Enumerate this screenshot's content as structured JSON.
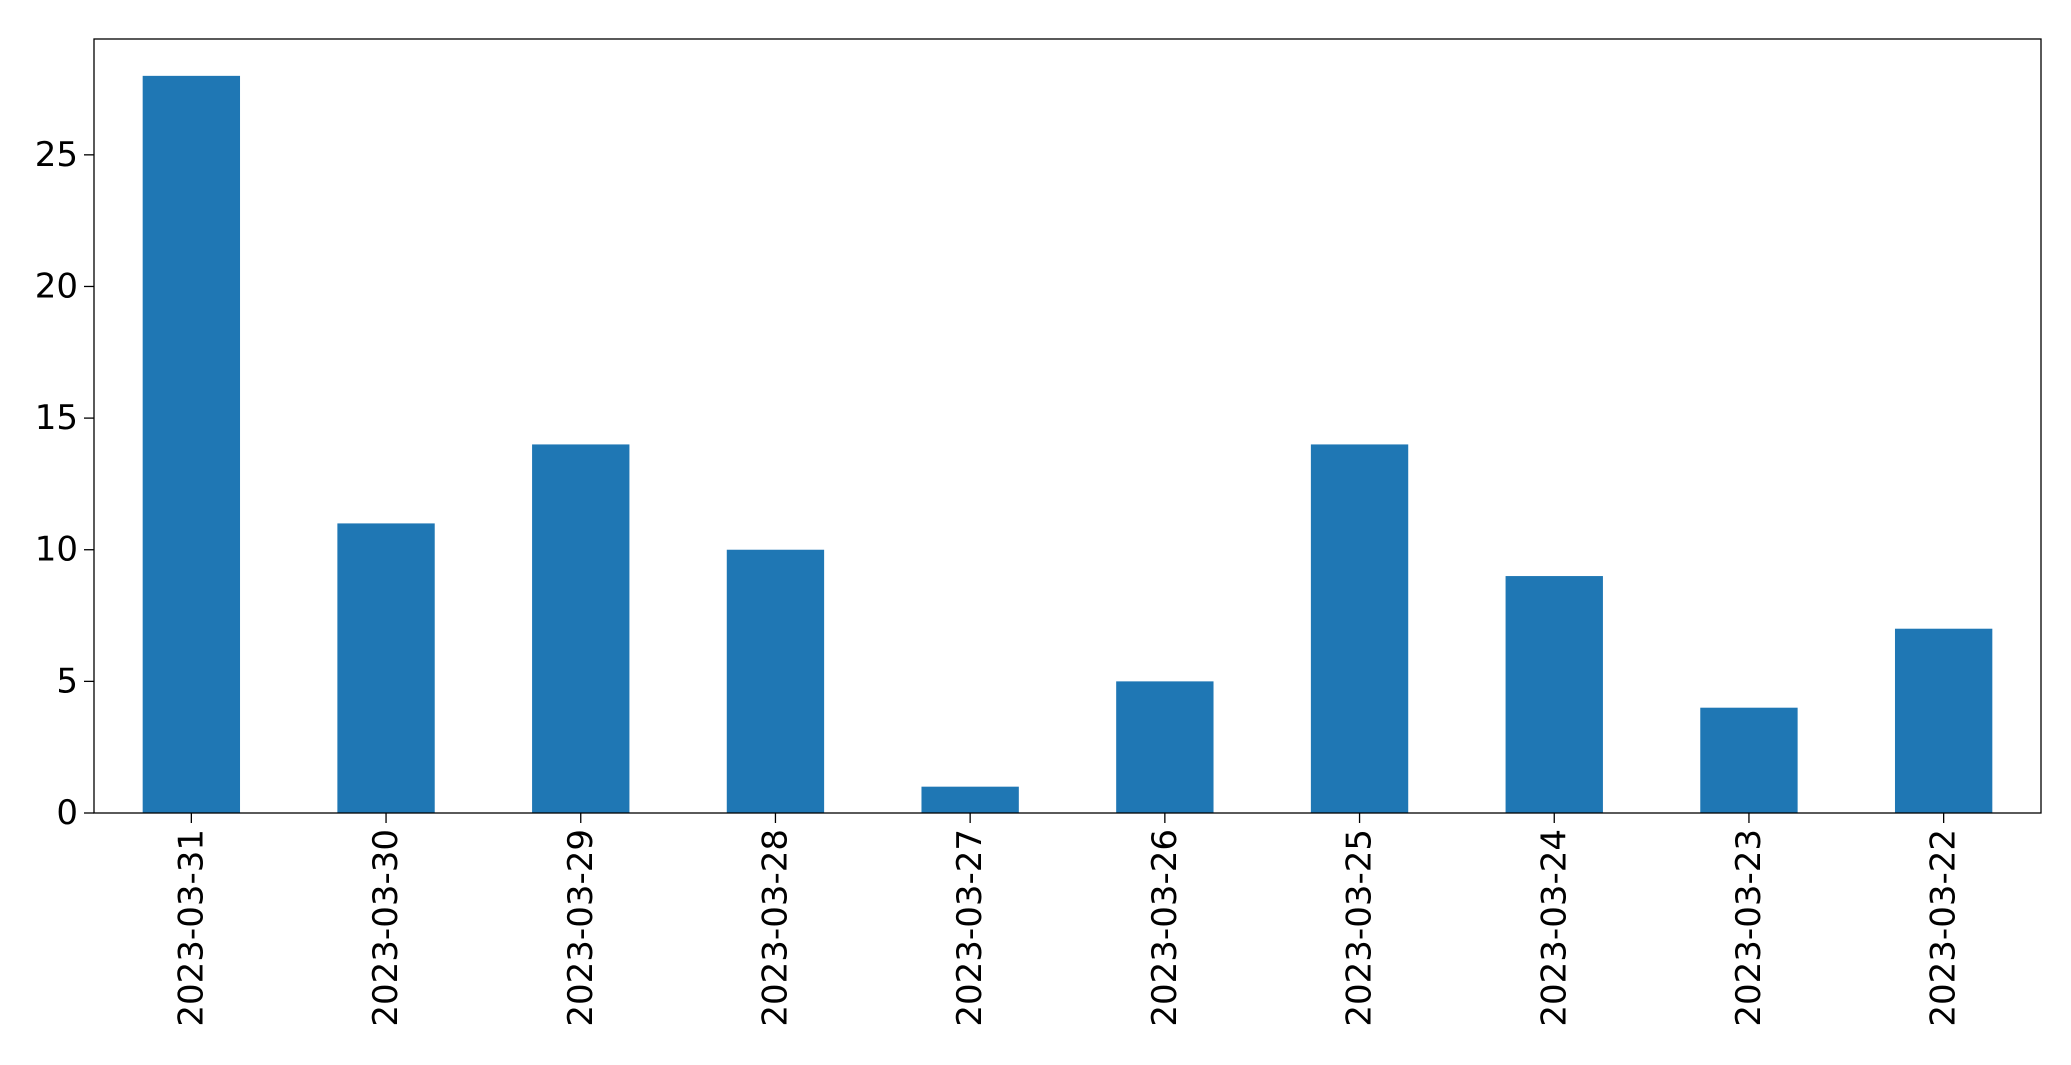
{
  "chart_data": {
    "type": "bar",
    "title": "",
    "xlabel": "",
    "ylabel": "",
    "categories": [
      "2023-03-31",
      "2023-03-30",
      "2023-03-29",
      "2023-03-28",
      "2023-03-27",
      "2023-03-26",
      "2023-03-25",
      "2023-03-24",
      "2023-03-23",
      "2023-03-22"
    ],
    "values": [
      28,
      11,
      14,
      10,
      1,
      5,
      14,
      9,
      4,
      7
    ],
    "ylim": [
      0,
      29.4
    ],
    "yticks": [
      0,
      5,
      10,
      15,
      20,
      25
    ],
    "grid": false,
    "legend": "none",
    "bar_color": "#1f77b4"
  }
}
